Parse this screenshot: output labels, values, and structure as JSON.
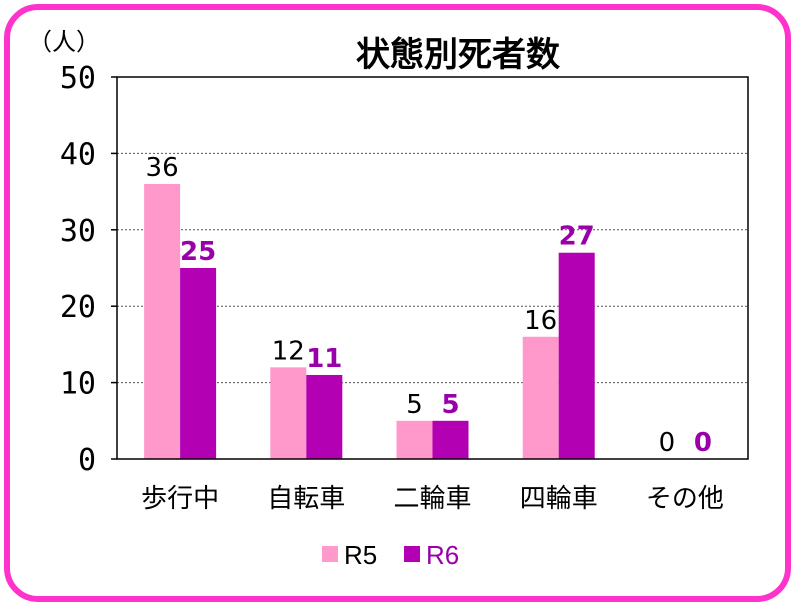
{
  "colors": {
    "border": "#ff33cc",
    "r5": "#ff99cc",
    "r6": "#b300b3",
    "r6_text": "#9900aa"
  },
  "chart_data": {
    "type": "bar",
    "title": "状態別死者数",
    "ylabel": "（人）",
    "ylim": [
      0,
      50
    ],
    "yticks": [
      "0",
      "10",
      "20",
      "30",
      "40",
      "50"
    ],
    "categories": [
      "歩行中",
      "自転車",
      "二輪車",
      "四輪車",
      "その他"
    ],
    "series": [
      {
        "name": "R5",
        "values": [
          36,
          12,
          5,
          16,
          0
        ]
      },
      {
        "name": "R6",
        "values": [
          25,
          11,
          5,
          27,
          0
        ]
      }
    ],
    "grid": true,
    "legend": "bottom"
  }
}
